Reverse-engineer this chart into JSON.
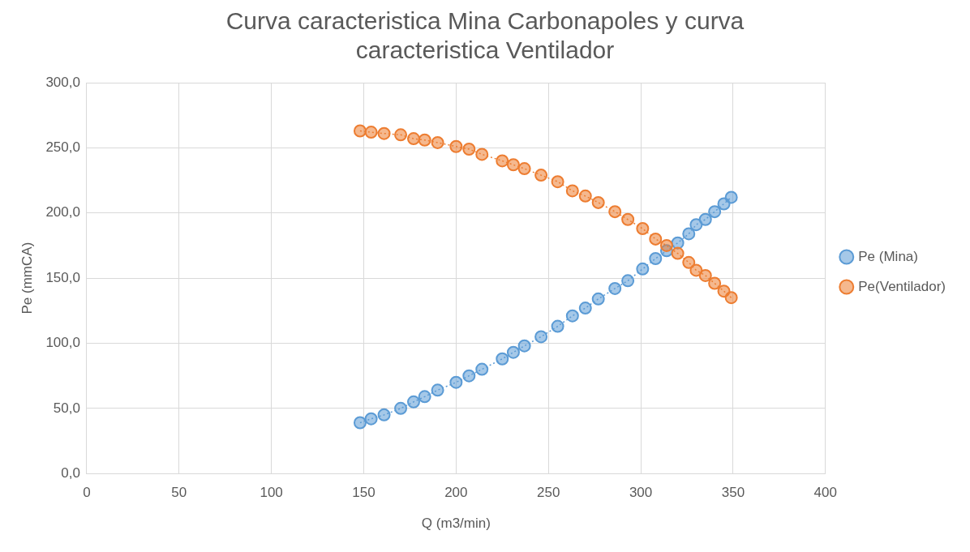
{
  "chart_data": {
    "type": "line",
    "title": "Curva caracteristica Mina Carbonapoles y curva caracteristica Ventilador",
    "xlabel": "Q (m3/min)",
    "ylabel": "Pe (mmCA)",
    "x": [
      148,
      154,
      161,
      170,
      177,
      183,
      190,
      200,
      207,
      214,
      225,
      231,
      237,
      246,
      255,
      263,
      270,
      277,
      286,
      293,
      301,
      308,
      314,
      320,
      326,
      330,
      335,
      340,
      345,
      349
    ],
    "series": [
      {
        "name": "Pe (Mina)",
        "color": "#5b9bd5",
        "values": [
          39,
          42,
          45,
          50,
          55,
          59,
          64,
          70,
          75,
          80,
          88,
          93,
          98,
          105,
          113,
          121,
          127,
          134,
          142,
          148,
          157,
          165,
          171,
          177,
          184,
          191,
          195,
          201,
          207,
          212
        ]
      },
      {
        "name": "Pe(Ventilador)",
        "color": "#ed7d31",
        "values": [
          263,
          262,
          261,
          260,
          257,
          256,
          254,
          251,
          249,
          245,
          240,
          237,
          234,
          229,
          224,
          217,
          213,
          208,
          201,
          195,
          188,
          180,
          175,
          169,
          162,
          156,
          152,
          146,
          140,
          135
        ]
      }
    ],
    "xlim": [
      0,
      400
    ],
    "xticks": [
      0,
      50,
      100,
      150,
      200,
      250,
      300,
      350,
      400
    ],
    "ylim": [
      0,
      300
    ],
    "yticks": [
      {
        "value": 0,
        "label": "0,0"
      },
      {
        "value": 50,
        "label": "50,0"
      },
      {
        "value": 100,
        "label": "100,0"
      },
      {
        "value": 150,
        "label": "150,0"
      },
      {
        "value": 200,
        "label": "200,0"
      },
      {
        "value": 250,
        "label": "250,0"
      },
      {
        "value": 300,
        "label": "300,0"
      }
    ],
    "grid": true,
    "legend": "right",
    "marker": "circle",
    "line_style": "dotted"
  }
}
